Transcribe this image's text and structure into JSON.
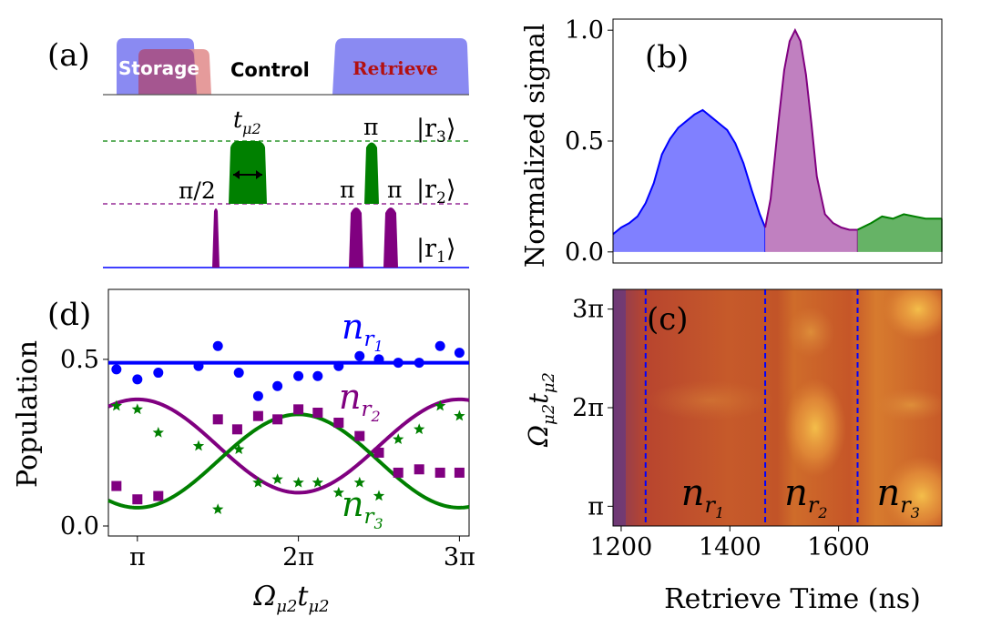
{
  "colors": {
    "blue": "#0000ff",
    "purple": "#800080",
    "green": "#008000",
    "blue_fill": "#8080ff",
    "purple_fill": "#c080c0",
    "green_fill": "#66b366",
    "storage_box": "#8a8af2",
    "overlap_box": "#a0508f",
    "pink_box": "#e08a8a",
    "retrieve_text": "#b31010"
  },
  "panel_a": {
    "label": "(a)",
    "storage_label": "Storage",
    "control_label": "Control",
    "retrieve_label": "Retrieve",
    "level_r3": "|r",
    "level_r3_sub": "3",
    "level_r2": "|r",
    "level_r2_sub": "2",
    "level_r1": "|r",
    "level_r1_sub": "1",
    "ket_close": "⟩",
    "pulse_half_pi": "π/2",
    "pulse_pi": "π",
    "t_mu2_main": "t",
    "t_mu2_sub": "μ2"
  },
  "chart_data": [
    {
      "id": "b",
      "label": "(b)",
      "type": "area",
      "ylabel": "Normalized signal",
      "ylim": [
        -0.05,
        1.05
      ],
      "yticks": [
        0.0,
        0.5,
        1.0
      ],
      "ytick_labels": [
        "0.0",
        "0.5",
        "1.0"
      ],
      "xlim": [
        1185,
        1790
      ],
      "series": [
        {
          "name": "blue",
          "x": [
            1185,
            1200,
            1215,
            1230,
            1245,
            1260,
            1275,
            1290,
            1305,
            1320,
            1335,
            1350,
            1365,
            1380,
            1395,
            1410,
            1425,
            1440,
            1455,
            1465
          ],
          "y": [
            0.08,
            0.11,
            0.13,
            0.16,
            0.22,
            0.31,
            0.44,
            0.51,
            0.56,
            0.59,
            0.62,
            0.64,
            0.61,
            0.58,
            0.55,
            0.49,
            0.4,
            0.28,
            0.17,
            0.11
          ]
        },
        {
          "name": "purple",
          "x": [
            1465,
            1475,
            1490,
            1500,
            1510,
            1520,
            1530,
            1540,
            1550,
            1560,
            1575,
            1590,
            1605,
            1620,
            1635
          ],
          "y": [
            0.11,
            0.24,
            0.6,
            0.82,
            0.95,
            1.0,
            0.95,
            0.8,
            0.58,
            0.34,
            0.17,
            0.13,
            0.11,
            0.1,
            0.1
          ]
        },
        {
          "name": "green",
          "x": [
            1635,
            1660,
            1680,
            1700,
            1720,
            1740,
            1760,
            1790
          ],
          "y": [
            0.1,
            0.13,
            0.16,
            0.15,
            0.17,
            0.16,
            0.15,
            0.15
          ]
        }
      ]
    },
    {
      "id": "c",
      "label": "(c)",
      "type": "heatmap",
      "xlabel": "Retrieve Time (ns)",
      "ylabel": "Ω_{μ2} t_{μ2}",
      "ylabel_main": "Ω",
      "ylabel_sub1": "μ2",
      "ylabel_mid": "t",
      "ylabel_sub2": "μ2",
      "xlim": [
        1185,
        1790
      ],
      "ylim": [
        0.8,
        3.2
      ],
      "xticks": [
        1200,
        1400,
        1600
      ],
      "xtick_labels": [
        "1200",
        "1400",
        "1600"
      ],
      "yticks": [
        1,
        2,
        3
      ],
      "ytick_labels": [
        "π",
        "2π",
        "3π"
      ],
      "dashed_lines_x": [
        1245,
        1465,
        1635
      ],
      "region_labels": [
        {
          "x": 1350,
          "main": "n",
          "sub": "r",
          "sub2": "1"
        },
        {
          "x": 1540,
          "main": "n",
          "sub": "r",
          "sub2": "2"
        },
        {
          "x": 1710,
          "main": "n",
          "sub": "r",
          "sub2": "3"
        }
      ]
    },
    {
      "id": "d",
      "label": "(d)",
      "type": "scatter",
      "xlabel": "Ω_{μ2} t_{μ2}",
      "xlabel_main": "Ω",
      "xlabel_sub1": "μ2",
      "xlabel_mid": "t",
      "xlabel_sub2": "μ2",
      "ylabel": "Population",
      "xlim": [
        0.82,
        3.06
      ],
      "ylim": [
        -0.03,
        0.71
      ],
      "xticks": [
        1,
        2,
        3
      ],
      "xtick_labels": [
        "π",
        "2π",
        "3π"
      ],
      "yticks": [
        0.0,
        0.5
      ],
      "ytick_labels": [
        "0.0",
        "0.5"
      ],
      "series": [
        {
          "name": "n_r1",
          "label_main": "n",
          "label_sub": "r",
          "label_sub2": "1",
          "marker": "circle",
          "x": [
            0.87,
            1.0,
            1.13,
            1.38,
            1.5,
            1.63,
            1.75,
            1.87,
            2.0,
            2.12,
            2.25,
            2.38,
            2.5,
            2.62,
            2.75,
            2.88,
            3.0
          ],
          "y": [
            0.47,
            0.44,
            0.46,
            0.48,
            0.54,
            0.46,
            0.39,
            0.42,
            0.45,
            0.45,
            0.48,
            0.51,
            0.5,
            0.49,
            0.49,
            0.54,
            0.52
          ],
          "fit": {
            "kind": "const",
            "value": 0.49
          }
        },
        {
          "name": "n_r2",
          "label_main": "n",
          "label_sub": "r",
          "label_sub2": "2",
          "marker": "square",
          "x": [
            0.87,
            1.0,
            1.13,
            1.5,
            1.62,
            1.75,
            1.87,
            2.0,
            2.12,
            2.25,
            2.38,
            2.5,
            2.62,
            2.75,
            2.88,
            3.0
          ],
          "y": [
            0.12,
            0.08,
            0.09,
            0.32,
            0.29,
            0.33,
            0.32,
            0.35,
            0.34,
            0.31,
            0.27,
            0.22,
            0.16,
            0.17,
            0.16,
            0.16
          ],
          "fit": {
            "kind": "cos",
            "mean": 0.24,
            "amp": -0.14
          }
        },
        {
          "name": "n_r3",
          "label_main": "n",
          "label_sub": "r",
          "label_sub2": "3",
          "marker": "star",
          "x": [
            0.87,
            1.0,
            1.13,
            1.38,
            1.5,
            1.63,
            1.75,
            1.87,
            2.0,
            2.12,
            2.25,
            2.38,
            2.5,
            2.62,
            2.75,
            2.88,
            3.0
          ],
          "y": [
            0.36,
            0.35,
            0.28,
            0.24,
            0.05,
            0.23,
            0.13,
            0.14,
            0.13,
            0.13,
            0.1,
            0.13,
            0.09,
            0.26,
            0.29,
            0.36,
            0.33
          ],
          "fit": {
            "kind": "cos",
            "mean": 0.195,
            "amp": 0.14
          }
        }
      ]
    }
  ]
}
